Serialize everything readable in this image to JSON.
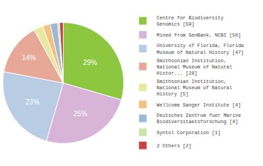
{
  "chart_data": {
    "type": "pie",
    "categories": [
      "Centre for Biodiversity\nGenomics [59]",
      "Mined from GenBank, NCBI [50]",
      "University of Florida, Florida\nMuseum of Natural History [47]",
      "Smithsonian Institution,\nNational Museum of Natural\nHistor... [28]",
      "Smithsonian Institution,\nNational Museum of Natural\nHistory [5]",
      "Wellcome Sanger Institute [4]",
      "Deutsches Zentrum fuer Marine\nBiodiversitaetsforschung [4]",
      "Syntol Corporation [1]",
      "2 Others [2]"
    ],
    "values": [
      59,
      50,
      47,
      28,
      5,
      4,
      4,
      1,
      2
    ],
    "value_labels": [
      "29%",
      "25%",
      "23%",
      "14%",
      null,
      null,
      null,
      null,
      null
    ],
    "colors": [
      "#8dc63f",
      "#d8b4d8",
      "#b8cce4",
      "#e8a898",
      "#e8e8a0",
      "#f5c080",
      "#9ab8d8",
      "#c8e6a0",
      "#d04040"
    ],
    "legend": "right"
  }
}
